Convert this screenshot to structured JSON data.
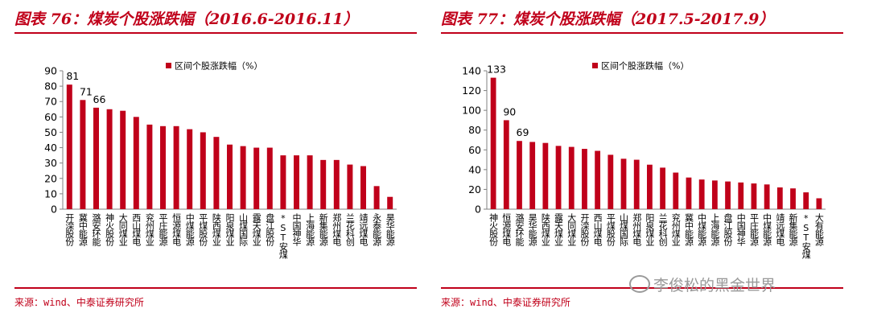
{
  "charts": [
    {
      "title": "图表 76：煤炭个股涨跌幅（2016.6-2016.11）",
      "footer": "来源：wind、中泰证券研究所"
    },
    {
      "title": "图表 77：煤炭个股涨跌幅（2017.5-2017.9）",
      "footer": "来源：wind、中泰证券研究所"
    }
  ],
  "watermark": "李俊松的黑金世界",
  "colors": {
    "accent": "#c0001a",
    "bar": "#c0001a",
    "axis": "#808080",
    "text": "#000000"
  },
  "chart_data": [
    {
      "type": "bar",
      "title": "",
      "xlabel": "",
      "ylabel": "",
      "legend": "区间个股涨跌幅（%）",
      "legend_position": "top-center",
      "grid": false,
      "ylim": [
        0,
        90
      ],
      "yticks": [
        0,
        10,
        20,
        30,
        40,
        50,
        60,
        70,
        80,
        90
      ],
      "categories": [
        "开滦股份",
        "冀中能源",
        "潞安环能",
        "神火股份",
        "大同煤业",
        "西山煤电",
        "兖州煤业",
        "平庄能源",
        "恒源煤电",
        "中煤能源",
        "平煤股份",
        "陕西煤业",
        "阳泉煤业",
        "山煤国际",
        "露天煤业",
        "盘江股份",
        "*ST安煤",
        "中国神华",
        "上海能源",
        "新集能源",
        "郑州煤电",
        "兰花科创",
        "靖远煤电",
        "永泰能源",
        "昊华能源"
      ],
      "values": [
        81,
        71,
        66,
        65,
        64,
        60,
        55,
        54,
        54,
        52,
        50,
        47,
        42,
        41,
        40,
        40,
        35,
        35,
        35,
        32,
        32,
        29,
        28,
        15,
        8
      ],
      "data_labels": [
        {
          "index": 0,
          "text": "81"
        },
        {
          "index": 1,
          "text": "71"
        },
        {
          "index": 2,
          "text": "66"
        }
      ]
    },
    {
      "type": "bar",
      "title": "",
      "xlabel": "",
      "ylabel": "",
      "legend": "区间个股涨跌幅（%）",
      "legend_position": "top-center",
      "grid": false,
      "ylim": [
        0,
        140
      ],
      "yticks": [
        0,
        20,
        40,
        60,
        80,
        100,
        120,
        140
      ],
      "categories": [
        "神火股份",
        "恒源煤电",
        "潞安环能",
        "昊华能源",
        "陕西煤业",
        "露天煤业",
        "大同煤业",
        "开滦股份",
        "西山煤电",
        "平煤股份",
        "山煤国际",
        "郑州煤电",
        "阳泉煤业",
        "兰花科创",
        "兖州煤业",
        "冀中能源",
        "中煤能源",
        "上海能源",
        "盘江股份",
        "中国神华",
        "平庄能源",
        "中煤能源",
        "靖远煤电",
        "新集能源",
        "*ST安煤",
        "大有能源"
      ],
      "values": [
        133,
        90,
        69,
        68,
        67,
        64,
        63,
        61,
        59,
        55,
        51,
        50,
        45,
        42,
        37,
        32,
        30,
        29,
        28,
        27,
        26,
        25,
        22,
        21,
        17,
        11
      ],
      "data_labels": [
        {
          "index": 0,
          "text": "133"
        },
        {
          "index": 1,
          "text": "90"
        },
        {
          "index": 2,
          "text": "69"
        }
      ]
    }
  ]
}
